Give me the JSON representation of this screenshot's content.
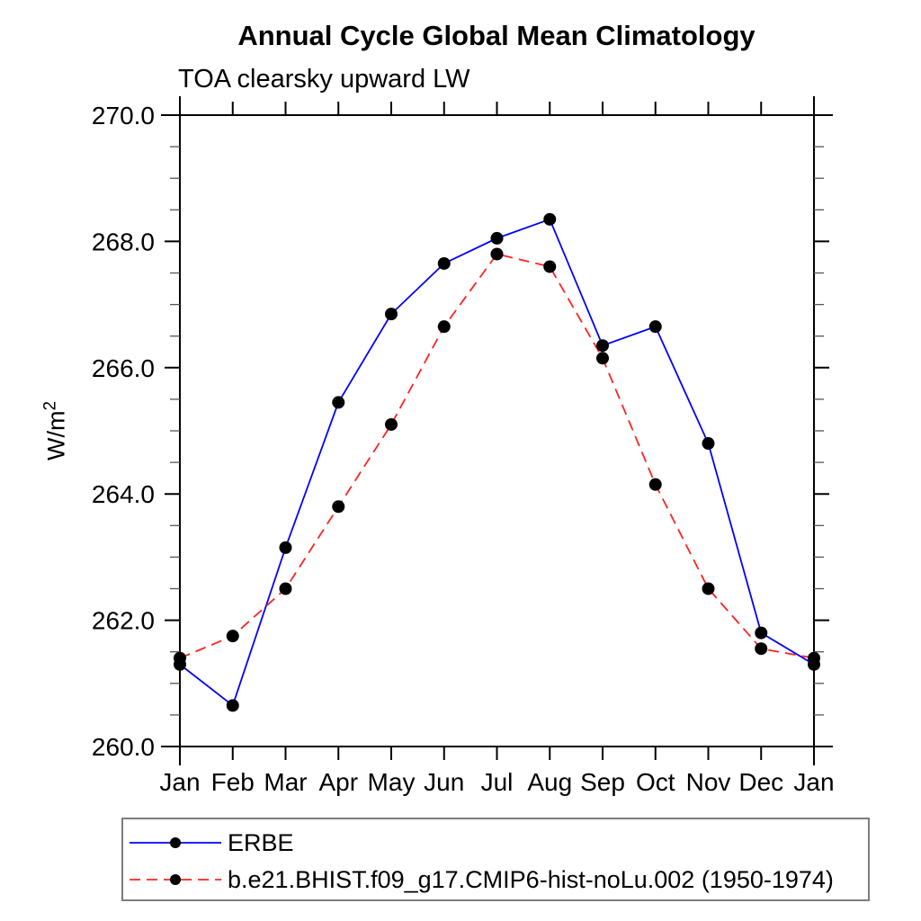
{
  "chart_data": {
    "type": "line",
    "title": "Annual Cycle Global Mean Climatology",
    "subtitle": "TOA clearsky upward LW",
    "ylabel": "W/m²",
    "xlabel": "",
    "categories": [
      "Jan",
      "Feb",
      "Mar",
      "Apr",
      "May",
      "Jun",
      "Jul",
      "Aug",
      "Sep",
      "Oct",
      "Nov",
      "Dec",
      "Jan"
    ],
    "series": [
      {
        "name": "ERBE",
        "color": "#0000ff",
        "line_style": "solid",
        "marker": "filled-circle",
        "marker_color": "#000000",
        "values": [
          261.3,
          260.65,
          263.15,
          265.45,
          266.85,
          267.65,
          268.05,
          268.35,
          266.35,
          266.65,
          264.8,
          261.8,
          261.3
        ]
      },
      {
        "name": "b.e21.BHIST.f09_g17.CMIP6-hist-noLu.002 (1950-1974)",
        "color": "#ff2222",
        "line_style": "dashed",
        "marker": "filled-circle",
        "marker_color": "#000000",
        "values": [
          261.4,
          261.75,
          262.5,
          263.8,
          265.1,
          266.65,
          267.8,
          267.6,
          266.15,
          264.15,
          262.5,
          261.55,
          261.4
        ]
      }
    ],
    "ylim": [
      260.0,
      270.0
    ],
    "ytick_interval": 2.0,
    "yminor_interval": 0.5,
    "ytick_labels": [
      "260.0",
      "262.0",
      "264.0",
      "266.0",
      "268.0",
      "270.0"
    ],
    "grid": false,
    "legend_position": "bottom-left",
    "axis_color": "#000000",
    "minor_tick_color": "#555555"
  }
}
